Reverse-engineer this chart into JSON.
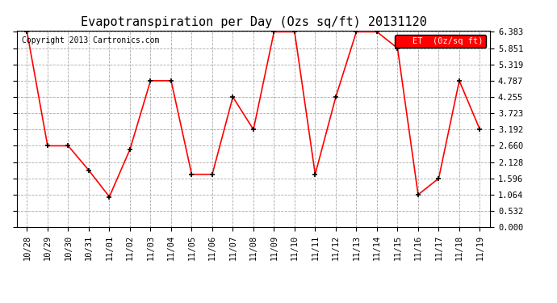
{
  "title": "Evapotranspiration per Day (Ozs sq/ft) 20131120",
  "copyright": "Copyright 2013 Cartronics.com",
  "legend_label": "ET  (0z/sq ft)",
  "x_labels": [
    "10/28",
    "10/29",
    "10/30",
    "10/31",
    "11/01",
    "11/02",
    "11/03",
    "11/04",
    "11/05",
    "11/06",
    "11/07",
    "11/08",
    "11/09",
    "11/10",
    "11/11",
    "11/12",
    "11/13",
    "11/14",
    "11/15",
    "11/16",
    "11/17",
    "11/18",
    "11/19"
  ],
  "y_values": [
    6.383,
    2.66,
    2.66,
    1.862,
    0.996,
    2.54,
    4.787,
    4.787,
    1.729,
    1.729,
    4.255,
    3.192,
    6.383,
    6.383,
    1.729,
    4.255,
    6.383,
    6.383,
    5.851,
    1.064,
    1.596,
    4.787,
    3.192
  ],
  "line_color": "red",
  "marker_color": "black",
  "bg_color": "#ffffff",
  "grid_color": "#aaaaaa",
  "y_ticks": [
    0.0,
    0.532,
    1.064,
    1.596,
    2.128,
    2.66,
    3.192,
    3.723,
    4.255,
    4.787,
    5.319,
    5.851,
    6.383
  ],
  "y_min": 0.0,
  "y_max": 6.383,
  "legend_bg": "red",
  "legend_text_color": "white",
  "title_fontsize": 11,
  "copyright_fontsize": 7,
  "tick_fontsize": 7.5,
  "figsize": [
    6.9,
    3.75
  ],
  "dpi": 100
}
